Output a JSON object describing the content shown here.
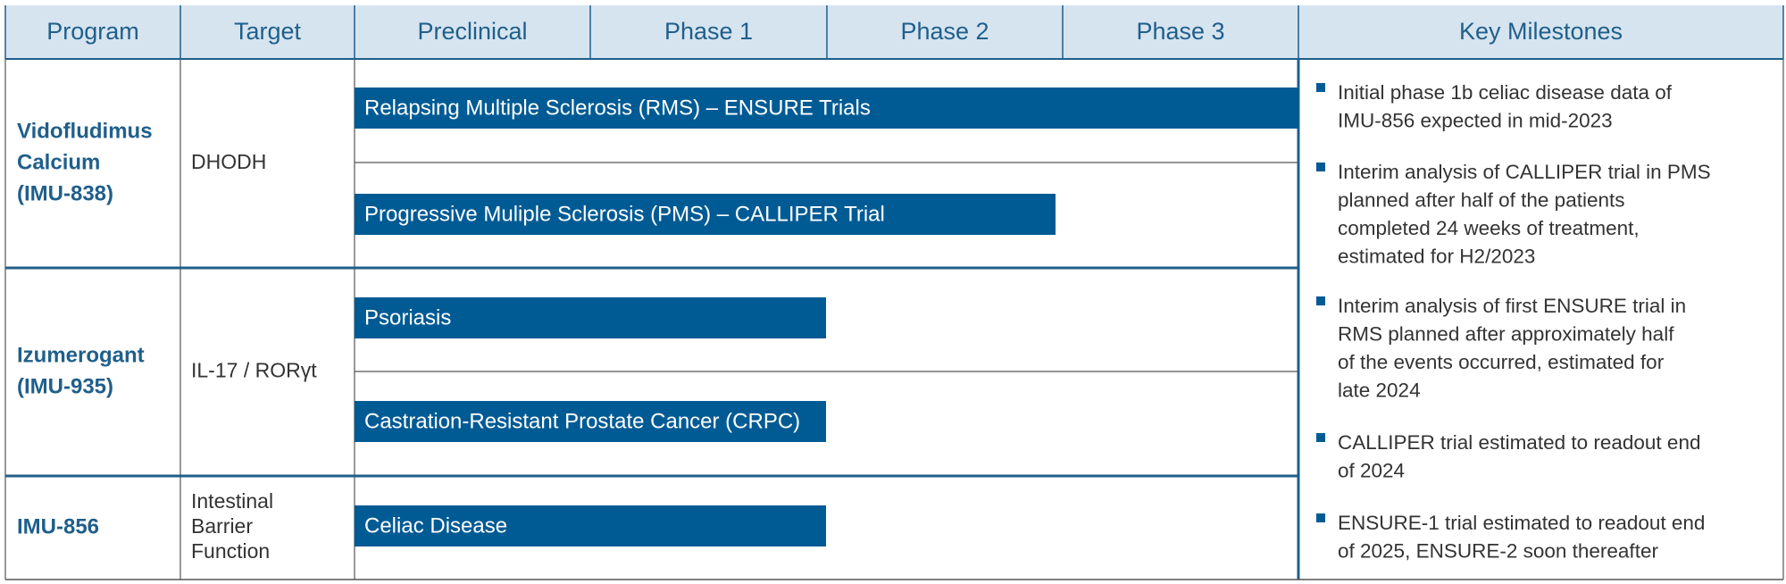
{
  "header": {
    "columns": [
      "Program",
      "Target",
      "Preclinical",
      "Phase 1",
      "Phase 2",
      "Phase 3",
      "Key Milestones"
    ]
  },
  "programs": [
    {
      "name": [
        "Vidofludimus",
        "Calcium",
        "(IMU-838)"
      ],
      "target": [
        "DHODH"
      ],
      "indications": [
        "Relapsing Multiple Sclerosis (RMS) – ENSURE Trials",
        "Progressive Muliple Sclerosis (PMS) – CALLIPER Trial"
      ]
    },
    {
      "name": [
        "Izumerogant",
        "(IMU-935)"
      ],
      "target": [
        "IL-17 / RORγt"
      ],
      "indications": [
        "Psoriasis",
        "Castration-Resistant Prostate Cancer (CRPC)"
      ]
    },
    {
      "name": [
        "IMU-856"
      ],
      "target": [
        "Intestinal",
        "Barrier",
        "Function"
      ],
      "indications": [
        "Celiac Disease"
      ]
    }
  ],
  "milestones": [
    [
      "Initial phase 1b celiac disease data of",
      "IMU-856 expected in mid-2023"
    ],
    [
      "Interim analysis of CALLIPER trial in PMS",
      "planned after half of the patients",
      "completed 24 weeks of treatment,",
      "estimated for H2/2023"
    ],
    [
      "Interim analysis of first ENSURE trial in",
      "RMS planned after approximately half",
      "of the events occurred, estimated for",
      "late 2024"
    ],
    [
      "CALLIPER trial estimated to readout end",
      "of 2024"
    ],
    [
      "ENSURE-1 trial estimated to readout end",
      "of 2025, ENSURE-2 soon thereafter"
    ]
  ]
}
